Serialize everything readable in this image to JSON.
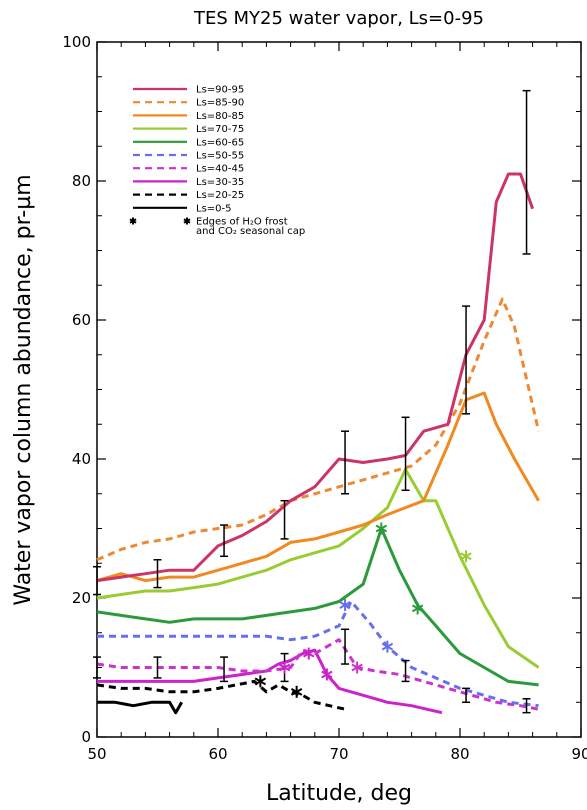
{
  "chart_data": {
    "type": "line",
    "title": "TES MY25 water vapor, Ls=0-95",
    "xlabel": "Latitude, deg",
    "ylabel": "Water vapor column abundance, pr-µm",
    "xlim": [
      50,
      90
    ],
    "ylim": [
      0,
      100
    ],
    "xticks": [
      "50",
      "60",
      "70",
      "80",
      "90"
    ],
    "yticks": [
      "0",
      "20",
      "40",
      "60",
      "80",
      "100"
    ],
    "legend_position": "top-left",
    "grid": false,
    "series": [
      {
        "name": "Ls=90-95",
        "color": "#cc3366",
        "dash": "solid",
        "x": [
          50,
          52,
          54,
          56,
          58,
          60,
          62,
          64,
          66,
          68,
          70,
          72,
          74,
          75.5,
          77,
          79,
          80.5,
          82,
          83,
          84,
          85,
          86
        ],
        "y": [
          22.5,
          23,
          23.5,
          24,
          24,
          27.5,
          29,
          31,
          34,
          36,
          40,
          39.5,
          40,
          40.5,
          44,
          45,
          55,
          60,
          77,
          81,
          81,
          76
        ]
      },
      {
        "name": "Ls=85-90",
        "color": "#ee8833",
        "dash": "dashed",
        "x": [
          50,
          52,
          54,
          56,
          58,
          60,
          62,
          64,
          66,
          68,
          70,
          72,
          74,
          76,
          78,
          80,
          82,
          83.5,
          84.5,
          86.5
        ],
        "y": [
          25.5,
          27,
          28,
          28.5,
          29.5,
          30,
          30.5,
          32,
          34,
          35,
          36,
          37,
          38,
          39,
          42,
          48,
          57,
          63,
          59,
          44
        ]
      },
      {
        "name": "Ls=80-85",
        "color": "#f08a20",
        "dash": "solid",
        "x": [
          50,
          52,
          54,
          56,
          58,
          60,
          62,
          64,
          66,
          68,
          70,
          72,
          74,
          75.5,
          77,
          79,
          80.5,
          82,
          83,
          84.5,
          86.5
        ],
        "y": [
          22.5,
          23.5,
          22.5,
          23,
          23,
          24,
          25,
          26,
          28,
          28.5,
          29.5,
          30.5,
          32,
          33,
          34,
          42,
          48.5,
          49.5,
          45,
          40,
          34
        ]
      },
      {
        "name": "Ls=70-75",
        "color": "#99cc33",
        "dash": "solid",
        "x": [
          50,
          52,
          54,
          56,
          58,
          60,
          62,
          64,
          66,
          68,
          70,
          72,
          74,
          75.5,
          77,
          78,
          80,
          82,
          84,
          86.5
        ],
        "y": [
          20,
          20.5,
          21,
          21,
          21.5,
          22,
          23,
          24,
          25.5,
          26.5,
          27.5,
          30,
          33,
          38.5,
          34,
          34,
          26,
          19,
          13,
          10
        ]
      },
      {
        "name": "Ls=60-65",
        "color": "#2a9a3a",
        "dash": "solid",
        "x": [
          50,
          52,
          54,
          56,
          58,
          60,
          62,
          64,
          66,
          68,
          70,
          72,
          73.5,
          75,
          76.5,
          78,
          80,
          82,
          84,
          86.5
        ],
        "y": [
          18,
          17.5,
          17,
          16.5,
          17,
          17,
          17,
          17.5,
          18,
          18.5,
          19.5,
          22,
          30,
          24,
          19,
          16,
          12,
          10,
          8,
          7.5
        ]
      },
      {
        "name": "Ls=50-55",
        "color": "#6670ee",
        "dash": "dashed",
        "x": [
          50,
          52,
          54,
          56,
          58,
          60,
          62,
          64,
          66,
          68,
          70,
          71,
          72.5,
          74,
          76,
          78,
          80,
          82,
          84,
          86.5
        ],
        "y": [
          14.5,
          14.5,
          14.5,
          14.5,
          14.5,
          14.5,
          14.5,
          14.5,
          14,
          14.5,
          16,
          19.5,
          16.5,
          13,
          10,
          8.5,
          7,
          6,
          5,
          4.5
        ]
      },
      {
        "name": "Ls=40-45",
        "color": "#cc33cc",
        "dash": "dashed",
        "x": [
          50,
          52,
          54,
          56,
          58,
          60,
          62,
          64,
          66,
          67,
          68,
          70,
          71.5,
          73,
          75,
          77,
          79,
          81,
          83,
          85,
          86.5
        ],
        "y": [
          10.5,
          10,
          10,
          10,
          10,
          10,
          9.5,
          9.5,
          10,
          12.5,
          12,
          14,
          10,
          9.5,
          9,
          8,
          7,
          6,
          5,
          4.5,
          4
        ]
      },
      {
        "name": "Ls=30-35",
        "color": "#cc22cc",
        "dash": "solid",
        "x": [
          50,
          52,
          54,
          56,
          58,
          60,
          62,
          64,
          65,
          66,
          67,
          68,
          69,
          70,
          72,
          74,
          76,
          78.5
        ],
        "y": [
          8,
          8,
          8,
          8,
          8,
          8.5,
          9,
          9.5,
          10.5,
          11,
          12,
          12.5,
          9,
          7,
          6,
          5,
          4.5,
          3.5
        ]
      },
      {
        "name": "Ls=20-25",
        "color": "#000000",
        "dash": "dashed",
        "x": [
          50,
          52,
          54,
          56,
          58,
          60,
          61.5,
          63,
          64,
          65,
          66,
          67,
          68,
          70.5
        ],
        "y": [
          7.5,
          7,
          7,
          6.5,
          6.5,
          7,
          7.5,
          8,
          6.5,
          7.5,
          6.5,
          6,
          5,
          4
        ]
      },
      {
        "name": "Ls=0-5",
        "color": "#000000",
        "dash": "solid",
        "x": [
          50,
          51.5,
          53,
          54.5,
          56,
          56.5,
          57
        ],
        "y": [
          5,
          5,
          4.5,
          5,
          5,
          3.5,
          5
        ]
      }
    ],
    "legend_note": [
      "Edges of H₂O frost",
      "and CO₂ seasonal cap"
    ],
    "cap_edges": [
      {
        "x": 63.5,
        "y": 8,
        "color": "#000000"
      },
      {
        "x": 65.5,
        "y": 10,
        "color": "#cc22cc"
      },
      {
        "x": 66.5,
        "y": 6.5,
        "color": "#000000"
      },
      {
        "x": 67.5,
        "y": 12,
        "color": "#cc22cc"
      },
      {
        "x": 69,
        "y": 9,
        "color": "#cc22cc"
      },
      {
        "x": 70.5,
        "y": 19,
        "color": "#6670ee"
      },
      {
        "x": 71.5,
        "y": 10,
        "color": "#cc33cc"
      },
      {
        "x": 73.5,
        "y": 30,
        "color": "#2a9a3a"
      },
      {
        "x": 74,
        "y": 13,
        "color": "#6670ee"
      },
      {
        "x": 76.5,
        "y": 18.5,
        "color": "#2a9a3a"
      },
      {
        "x": 80.5,
        "y": 26,
        "color": "#99cc33"
      }
    ],
    "error_bars": [
      {
        "x": 50,
        "y": 22.5,
        "lo": 20.5,
        "hi": 24.5
      },
      {
        "x": 55,
        "y": 23.5,
        "lo": 21.5,
        "hi": 25.5
      },
      {
        "x": 60.5,
        "y": 28,
        "lo": 26,
        "hi": 30.5
      },
      {
        "x": 65.5,
        "y": 31,
        "lo": 28.5,
        "hi": 34
      },
      {
        "x": 70.5,
        "y": 40,
        "lo": 35,
        "hi": 44
      },
      {
        "x": 75.5,
        "y": 40.5,
        "lo": 35.5,
        "hi": 46
      },
      {
        "x": 80.5,
        "y": 54,
        "lo": 46.5,
        "hi": 62
      },
      {
        "x": 85.5,
        "y": 81,
        "lo": 69.5,
        "hi": 93
      },
      {
        "x": 50,
        "y": 10,
        "lo": 8.5,
        "hi": 11.5
      },
      {
        "x": 55,
        "y": 10,
        "lo": 8.5,
        "hi": 11.5
      },
      {
        "x": 60.5,
        "y": 10,
        "lo": 8,
        "hi": 11.5
      },
      {
        "x": 65.5,
        "y": 10,
        "lo": 8,
        "hi": 12
      },
      {
        "x": 70.5,
        "y": 13,
        "lo": 10.5,
        "hi": 15.5
      },
      {
        "x": 75.5,
        "y": 9.5,
        "lo": 8,
        "hi": 11
      },
      {
        "x": 80.5,
        "y": 6,
        "lo": 5,
        "hi": 7
      },
      {
        "x": 85.5,
        "y": 4.5,
        "lo": 3.5,
        "hi": 5.5
      }
    ]
  }
}
